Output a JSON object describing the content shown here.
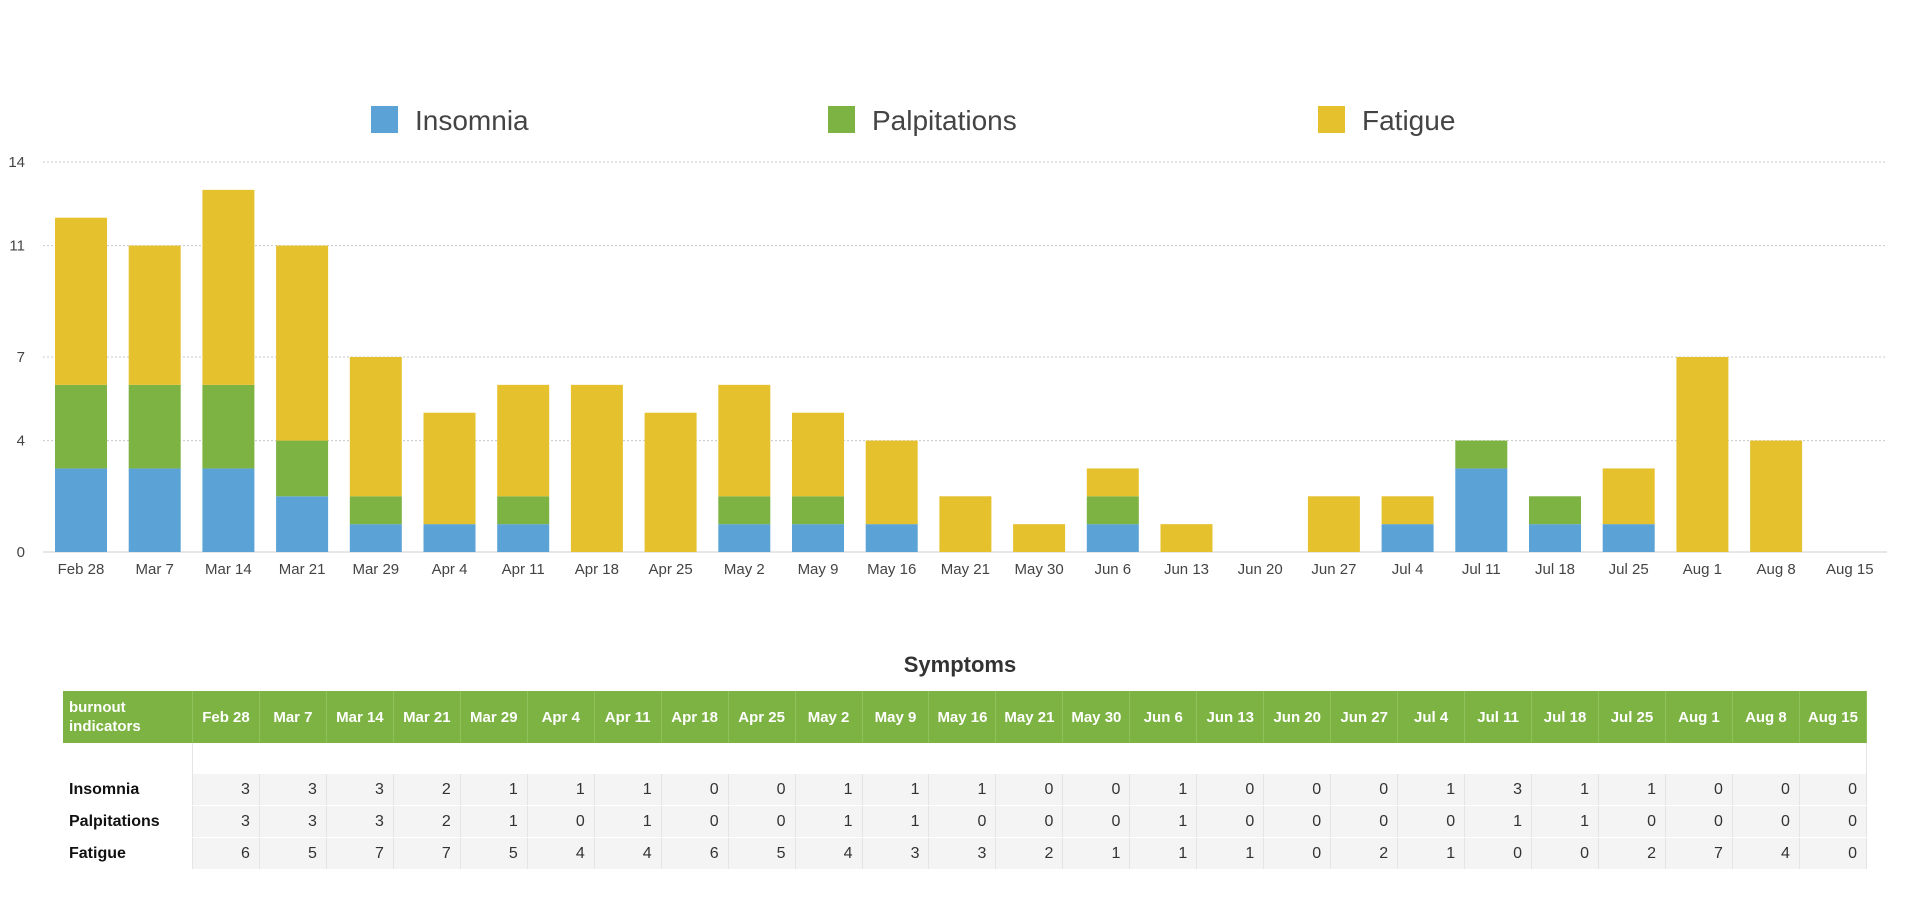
{
  "chart_data": {
    "type": "bar",
    "stacked": true,
    "categories": [
      "Feb 28",
      "Mar 7",
      "Mar 14",
      "Mar 21",
      "Mar 29",
      "Apr 4",
      "Apr 11",
      "Apr 18",
      "Apr 25",
      "May 2",
      "May 9",
      "May 16",
      "May 21",
      "May 30",
      "Jun 6",
      "Jun 13",
      "Jun 20",
      "Jun 27",
      "Jul 4",
      "Jul 11",
      "Jul 18",
      "Jul 25",
      "Aug 1",
      "Aug 8",
      "Aug 15"
    ],
    "series": [
      {
        "name": "Insomnia",
        "color": "#5ba3d6",
        "values": [
          3,
          3,
          3,
          2,
          1,
          1,
          1,
          0,
          0,
          1,
          1,
          1,
          0,
          0,
          1,
          0,
          0,
          0,
          1,
          3,
          1,
          1,
          0,
          0,
          0
        ]
      },
      {
        "name": "Palpitations",
        "color": "#7cb342",
        "values": [
          3,
          3,
          3,
          2,
          1,
          0,
          1,
          0,
          0,
          1,
          1,
          0,
          0,
          0,
          1,
          0,
          0,
          0,
          0,
          1,
          1,
          0,
          0,
          0,
          0
        ]
      },
      {
        "name": "Fatigue",
        "color": "#e6c12e",
        "values": [
          6,
          5,
          7,
          7,
          5,
          4,
          4,
          6,
          5,
          4,
          3,
          3,
          2,
          1,
          1,
          1,
          0,
          2,
          1,
          0,
          0,
          2,
          7,
          4,
          0
        ]
      }
    ],
    "yticks": [
      0,
      4,
      7,
      11,
      14
    ],
    "ylim": [
      0,
      14
    ],
    "grid": true,
    "legend_position": "top"
  },
  "table": {
    "title": "Symptoms",
    "header_label": "burnout indicators"
  }
}
